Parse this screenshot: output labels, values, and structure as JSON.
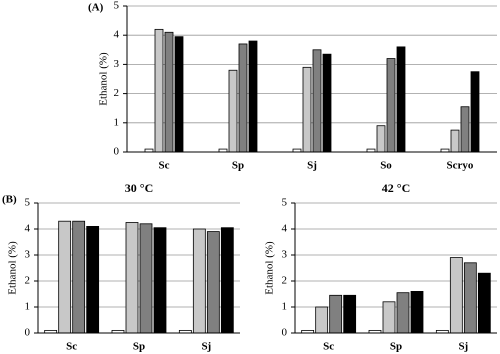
{
  "chart_data": [
    {
      "type": "bar",
      "panel_label": "(A)",
      "ylabel": "Ethanol (%)",
      "categories": [
        "Sc",
        "Sp",
        "Sj",
        "So",
        "Scryo"
      ],
      "series": [
        {
          "color": "#ffffff",
          "values": [
            0.1,
            0.1,
            0.1,
            0.1,
            0.1
          ]
        },
        {
          "color": "#c8c8c8",
          "values": [
            4.2,
            2.8,
            2.9,
            0.9,
            0.75
          ]
        },
        {
          "color": "#808080",
          "values": [
            4.1,
            3.7,
            3.5,
            3.2,
            1.55
          ]
        },
        {
          "color": "#000000",
          "values": [
            3.95,
            3.8,
            3.35,
            3.6,
            2.75
          ]
        }
      ],
      "ylim": [
        0,
        5
      ],
      "yticks": [
        0,
        1,
        2,
        3,
        4,
        5
      ],
      "grid": true
    },
    {
      "type": "bar",
      "panel_label": "(B)",
      "title": "30 °C",
      "ylabel": "Ethanol (%)",
      "categories": [
        "Sc",
        "Sp",
        "Sj"
      ],
      "series": [
        {
          "color": "#ffffff",
          "values": [
            0.1,
            0.1,
            0.1
          ]
        },
        {
          "color": "#c8c8c8",
          "values": [
            4.3,
            4.25,
            4.0
          ]
        },
        {
          "color": "#808080",
          "values": [
            4.3,
            4.2,
            3.9
          ]
        },
        {
          "color": "#000000",
          "values": [
            4.1,
            4.05,
            4.05
          ]
        }
      ],
      "ylim": [
        0,
        5
      ],
      "yticks": [
        0,
        1,
        2,
        3,
        4,
        5
      ],
      "grid": true
    },
    {
      "type": "bar",
      "title": "42 °C",
      "ylabel": "Ethanol (%)",
      "categories": [
        "Sc",
        "Sp",
        "Sj"
      ],
      "series": [
        {
          "color": "#ffffff",
          "values": [
            0.1,
            0.1,
            0.1
          ]
        },
        {
          "color": "#c8c8c8",
          "values": [
            1.0,
            1.2,
            2.9
          ]
        },
        {
          "color": "#808080",
          "values": [
            1.45,
            1.55,
            2.7
          ]
        },
        {
          "color": "#000000",
          "values": [
            1.45,
            1.6,
            2.3
          ]
        }
      ],
      "ylim": [
        0,
        5
      ],
      "yticks": [
        0,
        1,
        2,
        3,
        4,
        5
      ],
      "grid": true
    }
  ]
}
